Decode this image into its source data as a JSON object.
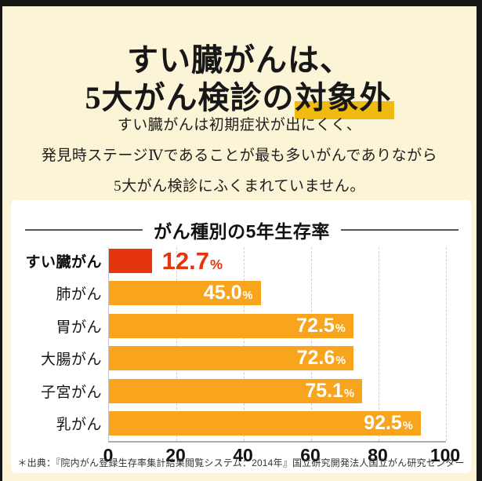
{
  "header": {
    "title_line1": "すい臓がんは、",
    "title_line2_prefix": "5大がん検診の",
    "title_line2_highlight": "対象外",
    "body_lines": [
      "すい臓がんは初期症状が出にくく、",
      "発見時ステージⅣであることが最も多いがんでありながら",
      "5大がん検診にふくまれていません。"
    ]
  },
  "chart_data": {
    "type": "bar",
    "orientation": "horizontal",
    "title": "がん種別の5年生存率",
    "categories": [
      "すい臓がん",
      "肺がん",
      "胃がん",
      "大腸がん",
      "子宮がん",
      "乳がん"
    ],
    "values": [
      12.7,
      45.0,
      72.5,
      72.6,
      75.1,
      92.5
    ],
    "value_labels": [
      "12.7",
      "45.0",
      "72.5",
      "72.6",
      "75.1",
      "92.5"
    ],
    "unit": "%",
    "xlim": [
      0,
      100
    ],
    "x_ticks": [
      0,
      20,
      40,
      60,
      80,
      100
    ],
    "grid": "dashed-vertical",
    "legend": "none",
    "highlight_index": 0,
    "source_note": "＊出典：『院内がん登録生存率集計結果閲覧システム：2014年』国立研究開発法人国立がん研究センター"
  },
  "colors": {
    "background": "#fbf4d6",
    "frame": "#161616",
    "card": "#ffffff",
    "title_highlight_marker": "#f0ba10",
    "bar_highlight": "#e5350e",
    "bar_normal": "#f8a41c",
    "value_inside": "#ffffff",
    "value_outside": "#e5350e"
  }
}
